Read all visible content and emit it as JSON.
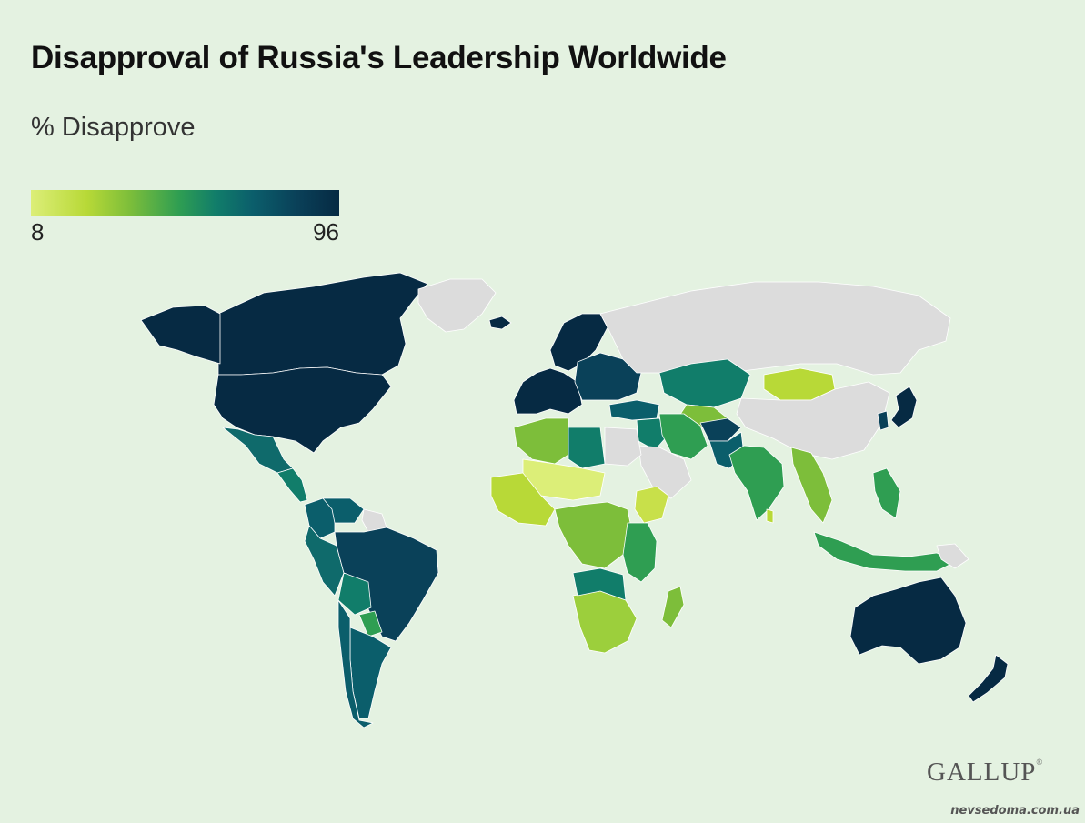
{
  "title": "Disapproval of Russia's Leadership Worldwide",
  "subtitle": "% Disapprove",
  "legend": {
    "min_label": "8",
    "max_label": "96",
    "min": 8,
    "max": 96,
    "gradient_colors": [
      "#dcee78",
      "#b8d937",
      "#7dbe3a",
      "#2f9e52",
      "#117d6a",
      "#0b5e6b",
      "#0a4159",
      "#062a43"
    ],
    "no_data_color": "#dcdcdc"
  },
  "background_color": "#e4f2e1",
  "logo": "GALLUP",
  "watermark": "nevsedoma.com.ua",
  "map_regions": [
    {
      "name": "Canada",
      "color": "#062a43"
    },
    {
      "name": "Alaska",
      "color": "#062a43"
    },
    {
      "name": "Greenland",
      "color": "#dcdcdc"
    },
    {
      "name": "United States",
      "color": "#062a43"
    },
    {
      "name": "Mexico",
      "color": "#0f6a6b"
    },
    {
      "name": "Central America",
      "color": "#117d6a"
    },
    {
      "name": "Colombia",
      "color": "#0b5e6b"
    },
    {
      "name": "Venezuela",
      "color": "#0b5e6b"
    },
    {
      "name": "Guianas",
      "color": "#dcdcdc"
    },
    {
      "name": "Peru",
      "color": "#0f6a6b"
    },
    {
      "name": "Brazil",
      "color": "#0a4159"
    },
    {
      "name": "Bolivia",
      "color": "#117d6a"
    },
    {
      "name": "Paraguay",
      "color": "#2f9e52"
    },
    {
      "name": "Argentina",
      "color": "#0b5e6b"
    },
    {
      "name": "Chile",
      "color": "#0b5e6b"
    },
    {
      "name": "Iceland",
      "color": "#062a43"
    },
    {
      "name": "Western Europe",
      "color": "#062a43"
    },
    {
      "name": "Scandinavia",
      "color": "#062a43"
    },
    {
      "name": "Eastern Europe",
      "color": "#0a4159"
    },
    {
      "name": "Russia",
      "color": "#dcdcdc"
    },
    {
      "name": "Kazakhstan",
      "color": "#117d6a"
    },
    {
      "name": "Mongolia",
      "color": "#b8d937"
    },
    {
      "name": "China",
      "color": "#dcdcdc"
    },
    {
      "name": "Japan",
      "color": "#062a43"
    },
    {
      "name": "South Korea",
      "color": "#0a4159"
    },
    {
      "name": "Central Asia",
      "color": "#7dbe3a"
    },
    {
      "name": "Turkey",
      "color": "#0b5e6b"
    },
    {
      "name": "Middle East",
      "color": "#117d6a"
    },
    {
      "name": "Arabian Peninsula",
      "color": "#dcdcdc"
    },
    {
      "name": "Iran",
      "color": "#2f9e52"
    },
    {
      "name": "Afghanistan",
      "color": "#0a4159"
    },
    {
      "name": "Pakistan",
      "color": "#0b5e6b"
    },
    {
      "name": "India",
      "color": "#2f9e52"
    },
    {
      "name": "Sri Lanka",
      "color": "#b8d937"
    },
    {
      "name": "Southeast Asia",
      "color": "#7dbe3a"
    },
    {
      "name": "Indonesia",
      "color": "#2f9e52"
    },
    {
      "name": "Philippines",
      "color": "#2f9e52"
    },
    {
      "name": "Papua New Guinea",
      "color": "#dcdcdc"
    },
    {
      "name": "North Africa",
      "color": "#7dbe3a"
    },
    {
      "name": "Libya",
      "color": "#117d6a"
    },
    {
      "name": "Egypt",
      "color": "#dcdcdc"
    },
    {
      "name": "Sahel",
      "color": "#dcee78"
    },
    {
      "name": "West Africa",
      "color": "#b8d937"
    },
    {
      "name": "Ethiopia",
      "color": "#c8e04a"
    },
    {
      "name": "Central Africa",
      "color": "#7dbe3a"
    },
    {
      "name": "East Africa",
      "color": "#2f9e52"
    },
    {
      "name": "Southern Africa",
      "color": "#9ccf3c"
    },
    {
      "name": "Namibia Botswana",
      "color": "#117d6a"
    },
    {
      "name": "Madagascar",
      "color": "#7dbe3a"
    },
    {
      "name": "Australia",
      "color": "#062a43"
    },
    {
      "name": "New Zealand",
      "color": "#062a43"
    }
  ]
}
